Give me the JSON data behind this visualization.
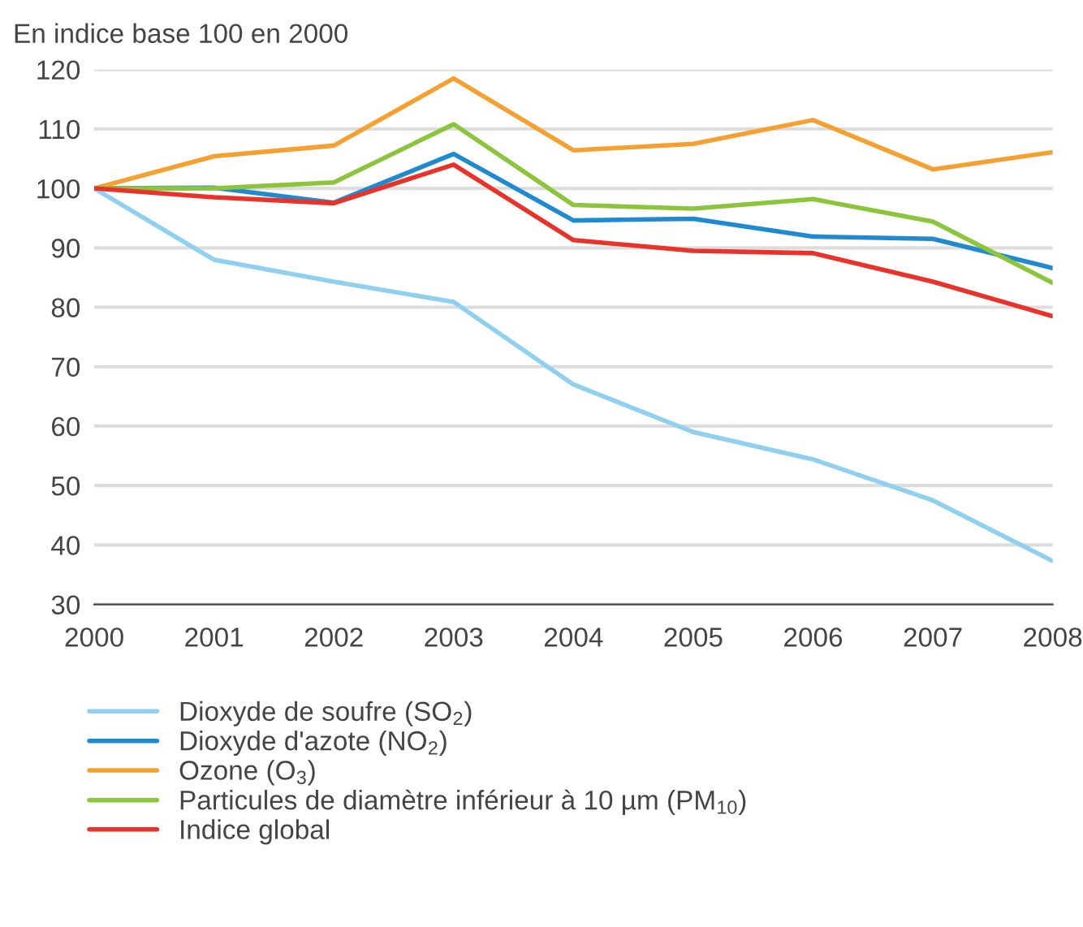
{
  "chart_data": {
    "type": "line",
    "title": "En indice base 100 en 2000",
    "x": [
      2000,
      2001,
      2002,
      2003,
      2004,
      2005,
      2006,
      2007,
      2008
    ],
    "series": [
      {
        "name": "Dioxyde de soufre (SO$_{2}$)",
        "color": "#8fd0f0",
        "values": [
          100,
          88,
          84.3,
          80.9,
          67,
          59,
          54.4,
          47.5,
          37.3
        ]
      },
      {
        "name": "Dioxyde d'azote (NO$_{2}$)",
        "color": "#1f8ad0",
        "values": [
          100,
          100.1,
          97.6,
          105.8,
          94.6,
          94.9,
          91.9,
          91.5,
          86.6
        ]
      },
      {
        "name": "Ozone (O$_{3}$)",
        "color": "#f5a030",
        "values": [
          100,
          105.4,
          107.2,
          118.5,
          106.4,
          107.5,
          111.5,
          103.2,
          106.1
        ]
      },
      {
        "name": "Particules de diamètre inférieur à 10 µm (PM$_{10}$)",
        "color": "#8cc43c",
        "values": [
          100,
          100,
          101,
          110.8,
          97.2,
          96.6,
          98.2,
          94.4,
          84.1
        ]
      },
      {
        "name": "Indice global",
        "color": "#e8322a",
        "values": [
          100,
          98.5,
          97.5,
          104,
          91.3,
          89.5,
          89.1,
          84.3,
          78.5
        ]
      }
    ],
    "xlim": [
      2000,
      2008
    ],
    "xticks": [
      2000,
      2001,
      2002,
      2003,
      2004,
      2005,
      2006,
      2007,
      2008
    ],
    "ylim": [
      30,
      120
    ],
    "yticks": [
      30,
      40,
      50,
      60,
      70,
      80,
      90,
      100,
      110,
      120
    ],
    "grid": "y",
    "legend": "bottom",
    "marker": "none",
    "line_style": "solid"
  }
}
